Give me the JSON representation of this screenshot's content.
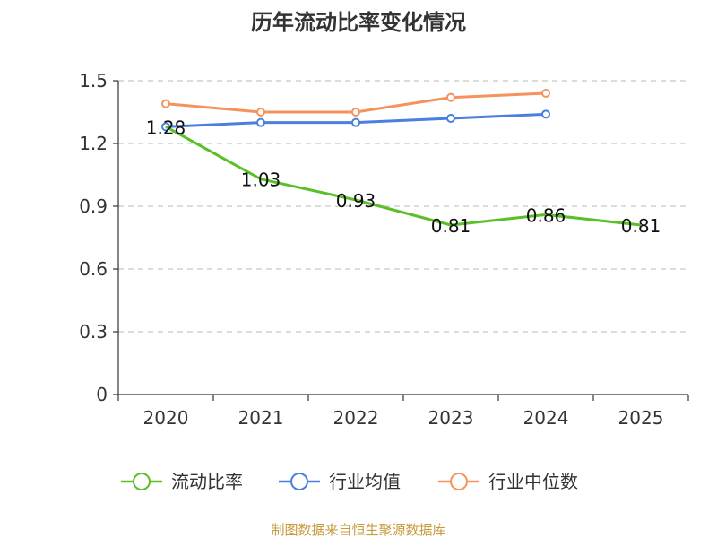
{
  "chart_data": {
    "type": "line",
    "title": "历年流动比率变化情况",
    "categories": [
      "2020",
      "2021",
      "2022",
      "2023",
      "2024",
      "2025"
    ],
    "ylim": [
      0,
      1.5
    ],
    "yticks": [
      "0",
      "0.3",
      "0.6",
      "0.9",
      "1.2",
      "1.5"
    ],
    "ytick_values": [
      0,
      0.3,
      0.6,
      0.9,
      1.2,
      1.5
    ],
    "grid": true,
    "legend_position": "bottom",
    "series": [
      {
        "name": "流动比率",
        "color": "#5cbf27",
        "values": [
          1.28,
          1.03,
          0.93,
          0.81,
          0.86,
          0.81
        ],
        "labels": [
          "1.28",
          "1.03",
          "0.93",
          "0.81",
          "0.86",
          "0.81"
        ]
      },
      {
        "name": "行业均值",
        "color": "#4a7fde",
        "values": [
          1.28,
          1.3,
          1.3,
          1.32,
          1.34,
          null
        ]
      },
      {
        "name": "行业中位数",
        "color": "#f5935c",
        "values": [
          1.39,
          1.35,
          1.35,
          1.42,
          1.44,
          null
        ]
      }
    ]
  },
  "source_text": "制图数据来自恒生聚源数据库"
}
